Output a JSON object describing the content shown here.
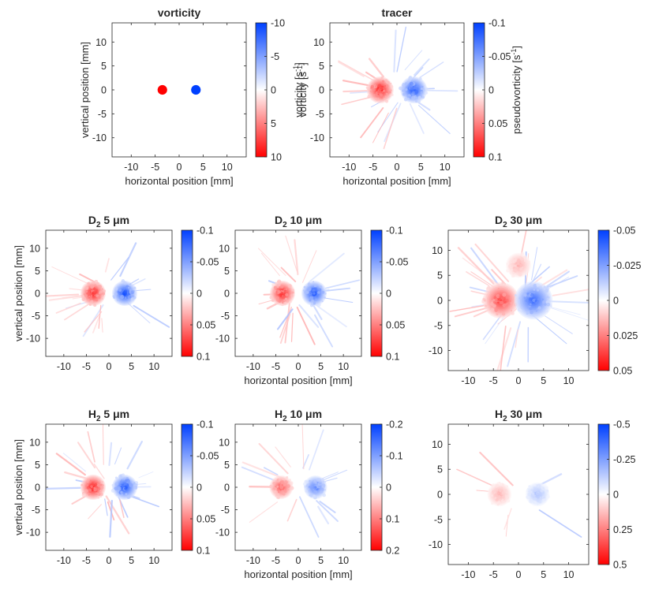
{
  "chart_data": [
    {
      "type": "heatmap",
      "title": "vorticity",
      "title_main": "vorticity",
      "title_sub": "",
      "title_suffix": "",
      "xlabel": "horizontal position [mm]",
      "ylabel": "vertical position [mm]",
      "xlim": [
        -14,
        14
      ],
      "ylim": [
        -14,
        14
      ],
      "xticks": [
        "-10",
        "-5",
        "0",
        "5",
        "10"
      ],
      "yticks": [
        "10",
        "5",
        "0",
        "-5",
        "-10"
      ],
      "colorbar": {
        "label": "vorticity [s",
        "label_sup": "-1",
        "label_end": "]",
        "range": [
          -10,
          10
        ],
        "ticks": [
          "-10",
          "-5",
          "0",
          "5",
          "10"
        ]
      },
      "blobs": [
        {
          "x": -3.5,
          "y": 0,
          "sign": "red",
          "strength": 1.0,
          "radius": 1.0,
          "spread": "tight"
        },
        {
          "x": 3.5,
          "y": 0,
          "sign": "blue",
          "strength": 1.0,
          "radius": 1.0,
          "spread": "tight"
        }
      ],
      "noise": 0.0
    },
    {
      "type": "heatmap",
      "title": "tracer",
      "title_main": "tracer",
      "title_sub": "",
      "title_suffix": "",
      "xlabel": "horizontal position [mm]",
      "ylabel": "vorticity [s-1]",
      "xlim": [
        -14,
        14
      ],
      "ylim": [
        -14,
        14
      ],
      "xticks": [
        "-10",
        "-5",
        "0",
        "5",
        "10"
      ],
      "yticks": [
        "10",
        "5",
        "0",
        "-5",
        "-10"
      ],
      "colorbar": {
        "label": "pseudovorticity [s",
        "label_sup": "-1",
        "label_end": "]",
        "range": [
          -0.1,
          0.1
        ],
        "ticks": [
          "-0.1",
          "-0.05",
          "0",
          "0.05",
          "0.1"
        ]
      },
      "blobs": [
        {
          "x": -3.5,
          "y": 0,
          "sign": "red",
          "strength": 1.0,
          "radius": 2.8,
          "spread": "soft"
        },
        {
          "x": 3.5,
          "y": 0,
          "sign": "blue",
          "strength": 1.0,
          "radius": 2.8,
          "spread": "soft"
        }
      ],
      "noise": 0.35
    },
    {
      "type": "heatmap",
      "title": "D2 5 μm",
      "title_main": "D",
      "title_sub": "2",
      "title_suffix": " 5 μm",
      "xlabel": "",
      "ylabel": "vertical position [mm]",
      "xlim": [
        -14,
        14
      ],
      "ylim": [
        -14,
        14
      ],
      "xticks": [
        "-10",
        "-5",
        "0",
        "5",
        "10"
      ],
      "yticks": [
        "10",
        "5",
        "0",
        "-5",
        "-10"
      ],
      "colorbar": {
        "label": "",
        "label_sup": "",
        "label_end": "",
        "range": [
          -0.1,
          0.1
        ],
        "ticks": [
          "-0.1",
          "-0.05",
          "0",
          "0.05",
          "0.1"
        ]
      },
      "blobs": [
        {
          "x": -3.5,
          "y": 0,
          "sign": "red",
          "strength": 1.0,
          "radius": 2.8,
          "spread": "soft"
        },
        {
          "x": 3.5,
          "y": 0,
          "sign": "blue",
          "strength": 1.0,
          "radius": 2.8,
          "spread": "soft"
        }
      ],
      "noise": 0.35
    },
    {
      "type": "heatmap",
      "title": "D2 10 μm",
      "title_main": "D",
      "title_sub": "2",
      "title_suffix": " 10 μm",
      "xlabel": "horizontal position [mm]",
      "ylabel": "",
      "xlim": [
        -14,
        14
      ],
      "ylim": [
        -14,
        14
      ],
      "xticks": [
        "-10",
        "-5",
        "0",
        "5",
        "10"
      ],
      "yticks": [
        "10",
        "5",
        "0",
        "-5",
        "-10"
      ],
      "colorbar": {
        "label": "",
        "label_sup": "",
        "label_end": "",
        "range": [
          -0.1,
          0.1
        ],
        "ticks": [
          "-0.1",
          "-0.05",
          "0",
          "0.05",
          "0.1"
        ]
      },
      "blobs": [
        {
          "x": -3.5,
          "y": 0,
          "sign": "red",
          "strength": 1.0,
          "radius": 2.8,
          "spread": "soft"
        },
        {
          "x": 3.5,
          "y": 0,
          "sign": "blue",
          "strength": 1.0,
          "radius": 2.8,
          "spread": "soft"
        }
      ],
      "noise": 0.35
    },
    {
      "type": "heatmap",
      "title": "D2 30 μm",
      "title_main": "D",
      "title_sub": "2",
      "title_suffix": " 30 μm",
      "xlabel": "",
      "ylabel": "",
      "xlim": [
        -14,
        14
      ],
      "ylim": [
        -14,
        14
      ],
      "xticks": [
        "-10",
        "-5",
        "0",
        "5",
        "10"
      ],
      "yticks": [
        "10",
        "5",
        "0",
        "-5",
        "-10"
      ],
      "colorbar": {
        "label": "",
        "label_sup": "",
        "label_end": "",
        "range": [
          -0.05,
          0.05
        ],
        "ticks": [
          "-0.05",
          "-0.025",
          "0",
          "0.025",
          "0.05"
        ]
      },
      "blobs": [
        {
          "x": -3.5,
          "y": 0,
          "sign": "red",
          "strength": 0.85,
          "radius": 3.6,
          "spread": "soft"
        },
        {
          "x": 3.0,
          "y": 0,
          "sign": "blue",
          "strength": 0.85,
          "radius": 3.8,
          "spread": "soft"
        },
        {
          "x": 0,
          "y": 7,
          "sign": "red",
          "strength": 0.35,
          "radius": 2.5,
          "spread": "soft"
        }
      ],
      "noise": 0.55
    },
    {
      "type": "heatmap",
      "title": "H2 5 μm",
      "title_main": "H",
      "title_sub": "2",
      "title_suffix": " 5 μm",
      "xlabel": "",
      "ylabel": "vertical position [mm]",
      "xlim": [
        -14,
        14
      ],
      "ylim": [
        -14,
        14
      ],
      "xticks": [
        "-10",
        "-5",
        "0",
        "5",
        "10"
      ],
      "yticks": [
        "10",
        "5",
        "0",
        "-5",
        "-10"
      ],
      "colorbar": {
        "label": "",
        "label_sup": "",
        "label_end": "",
        "range": [
          -0.1,
          0.1
        ],
        "ticks": [
          "-0.1",
          "-0.05",
          "0",
          "0.05",
          "0.1"
        ]
      },
      "blobs": [
        {
          "x": -3.5,
          "y": 0,
          "sign": "red",
          "strength": 1.0,
          "radius": 2.8,
          "spread": "soft"
        },
        {
          "x": 3.5,
          "y": 0,
          "sign": "blue",
          "strength": 1.0,
          "radius": 2.8,
          "spread": "soft"
        }
      ],
      "noise": 0.35
    },
    {
      "type": "heatmap",
      "title": "H2 10 μm",
      "title_main": "H",
      "title_sub": "2",
      "title_suffix": " 10 μm",
      "xlabel": "horizontal position [mm]",
      "ylabel": "",
      "xlim": [
        -14,
        14
      ],
      "ylim": [
        -14,
        14
      ],
      "xticks": [
        "-10",
        "-5",
        "0",
        "5",
        "10"
      ],
      "yticks": [
        "10",
        "5",
        "0",
        "-5",
        "-10"
      ],
      "colorbar": {
        "label": "",
        "label_sup": "",
        "label_end": "",
        "range": [
          -0.2,
          0.2
        ],
        "ticks": [
          "-0.2",
          "-0.1",
          "0",
          "0.1",
          "0.2"
        ]
      },
      "blobs": [
        {
          "x": -3.8,
          "y": 0,
          "sign": "red",
          "strength": 0.75,
          "radius": 2.6,
          "spread": "soft"
        },
        {
          "x": 3.8,
          "y": 0,
          "sign": "blue",
          "strength": 0.75,
          "radius": 2.6,
          "spread": "soft"
        }
      ],
      "noise": 0.25
    },
    {
      "type": "heatmap",
      "title": "H2 30 μm",
      "title_main": "H",
      "title_sub": "2",
      "title_suffix": " 30 μm",
      "xlabel": "",
      "ylabel": "",
      "xlim": [
        -14,
        14
      ],
      "ylim": [
        -14,
        14
      ],
      "xticks": [
        "-10",
        "-5",
        "0",
        "5",
        "10"
      ],
      "yticks": [
        "10",
        "5",
        "0",
        "-5",
        "-10"
      ],
      "colorbar": {
        "label": "",
        "label_sup": "",
        "label_end": "",
        "range": [
          -0.5,
          0.5
        ],
        "ticks": [
          "-0.5",
          "-0.25",
          "0",
          "0.25",
          "0.5"
        ]
      },
      "blobs": [
        {
          "x": -3.8,
          "y": 0,
          "sign": "red",
          "strength": 0.35,
          "radius": 2.4,
          "spread": "soft"
        },
        {
          "x": 3.8,
          "y": 0,
          "sign": "blue",
          "strength": 0.35,
          "radius": 2.4,
          "spread": "soft"
        }
      ],
      "noise": 0.1
    }
  ],
  "colors": {
    "red": "#ff0000",
    "white": "#ffffff",
    "blue": "#0040ff",
    "text": "#262626"
  }
}
